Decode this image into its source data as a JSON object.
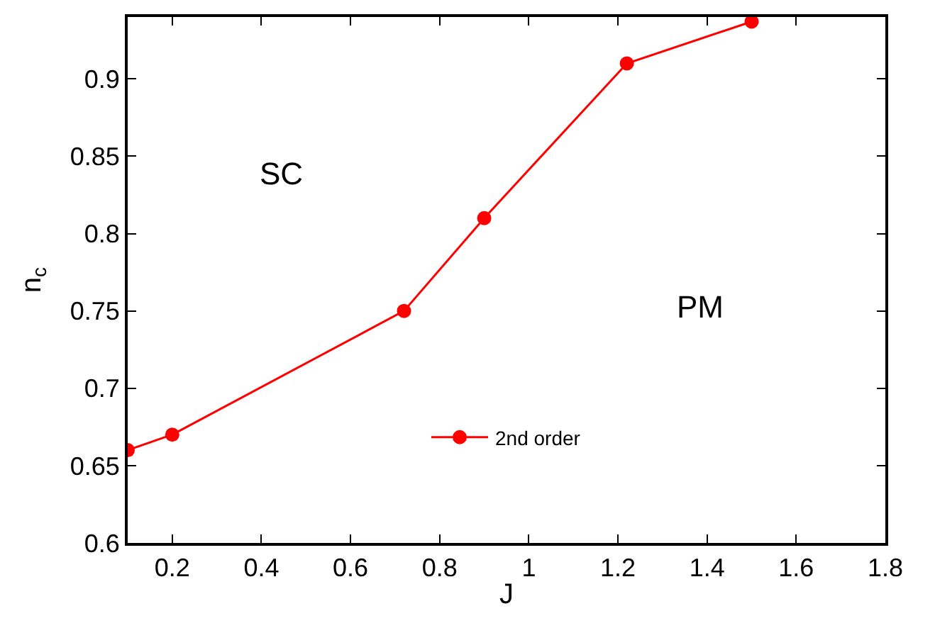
{
  "chart_data": {
    "type": "line",
    "xlabel": "J",
    "ylabel": "n$_{c}$",
    "x": [
      0.1,
      0.2,
      0.72,
      0.9,
      1.22,
      1.5
    ],
    "series": [
      {
        "name": "2nd order",
        "color": "#ff0000",
        "values": [
          0.66,
          0.67,
          0.75,
          0.81,
          0.91,
          0.937
        ]
      }
    ],
    "xlim": [
      0.1,
      1.8
    ],
    "xticks": [
      0.2,
      0.4,
      0.6,
      0.8,
      1,
      1.2,
      1.4,
      1.6,
      1.8
    ],
    "ylim": [
      0.6,
      0.94
    ],
    "yticks": [
      0.6,
      0.65,
      0.7,
      0.75,
      0.8,
      0.85,
      0.9
    ],
    "annotations": [
      "SC",
      "PM"
    ],
    "marker": "circle",
    "line_style": "solid",
    "legend": "bottom"
  }
}
